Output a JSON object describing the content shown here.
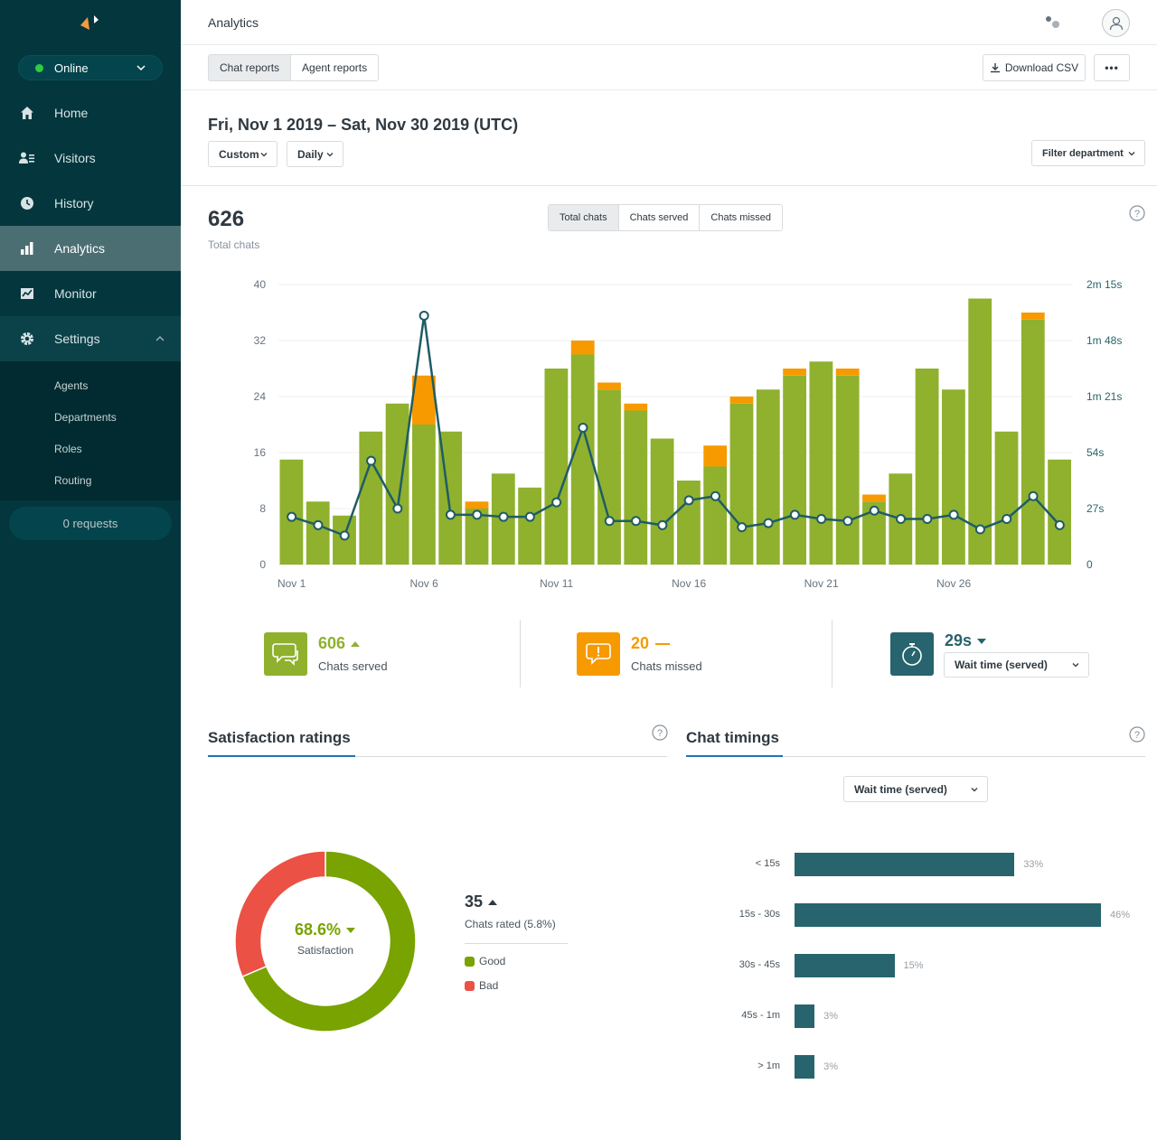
{
  "sidebar": {
    "status": "Online",
    "nav": [
      {
        "label": "Home",
        "icon": "home-icon"
      },
      {
        "label": "Visitors",
        "icon": "visitors-icon"
      },
      {
        "label": "History",
        "icon": "clock-icon"
      },
      {
        "label": "Analytics",
        "icon": "bar-chart-icon"
      },
      {
        "label": "Monitor",
        "icon": "monitor-icon"
      },
      {
        "label": "Settings",
        "icon": "gear-icon"
      }
    ],
    "settings_sub": [
      "Agents",
      "Departments",
      "Roles",
      "Routing"
    ],
    "requests": "0 requests"
  },
  "header": {
    "title": "Analytics"
  },
  "toolbar": {
    "tabs": [
      "Chat reports",
      "Agent reports"
    ],
    "download_label": "Download CSV",
    "more_label": "•••"
  },
  "report": {
    "date_range": "Fri, Nov 1 2019 – Sat, Nov 30 2019 (UTC)",
    "range_select": "Custom",
    "interval_select": "Daily",
    "filter_label": "Filter department"
  },
  "overview": {
    "total": "626",
    "total_label": "Total chats",
    "metric_tabs": [
      "Total chats",
      "Chats served",
      "Chats missed"
    ]
  },
  "colors": {
    "served": "#8fb12e",
    "missed": "#f79a00",
    "wait_line": "#1f5c66",
    "good": "#78a300",
    "bad": "#eb5144",
    "timing_bar": "#27646d"
  },
  "chart_data": [
    {
      "type": "bar",
      "x_ticks": [
        "Nov 1",
        "Nov 6",
        "Nov 11",
        "Nov 16",
        "Nov 21",
        "Nov 26"
      ],
      "y_ticks": [
        "0",
        "8",
        "16",
        "24",
        "32",
        "40"
      ],
      "y2_ticks": [
        "0",
        "27s",
        "54s",
        "1m 21s",
        "1m 48s",
        "2m 15s"
      ],
      "ylim": [
        0,
        40
      ],
      "y2lim": [
        0,
        135
      ],
      "stacked": true,
      "series": [
        {
          "name": "Chats served",
          "values": [
            15,
            9,
            7,
            19,
            23,
            20,
            19,
            8,
            13,
            11,
            28,
            30,
            25,
            22,
            18,
            12,
            14,
            23,
            25,
            27,
            29,
            27,
            9,
            13,
            28,
            25,
            38,
            19,
            35,
            15
          ]
        },
        {
          "name": "Chats missed",
          "values": [
            0,
            0,
            0,
            0,
            0,
            7,
            0,
            1,
            0,
            0,
            0,
            2,
            1,
            1,
            0,
            0,
            3,
            1,
            0,
            1,
            0,
            1,
            1,
            0,
            0,
            0,
            0,
            0,
            1,
            0
          ]
        },
        {
          "name": "Wait time (served)",
          "axis": "right",
          "values": [
            23,
            19,
            14,
            50,
            27,
            120,
            24,
            24,
            23,
            23,
            30,
            66,
            21,
            21,
            19,
            31,
            33,
            18,
            20,
            24,
            22,
            21,
            26,
            22,
            22,
            24,
            17,
            22,
            33,
            19
          ]
        }
      ]
    },
    {
      "type": "pie",
      "categories": [
        "Good",
        "Bad"
      ],
      "values": [
        68.6,
        31.4
      ],
      "center_value": "68.6%",
      "center_label": "Satisfaction"
    },
    {
      "type": "bar",
      "orientation": "horizontal",
      "categories": [
        "< 15s",
        "15s - 30s",
        "30s - 45s",
        "45s - 1m",
        "> 1m"
      ],
      "values": [
        33,
        46,
        15,
        3,
        3
      ],
      "labels": [
        "33%",
        "46%",
        "15%",
        "3%",
        "3%"
      ]
    }
  ],
  "summary": {
    "served_value": "606",
    "served_label": "Chats served",
    "missed_value": "20",
    "missed_label": "Chats missed",
    "wait_value": "29s",
    "wait_select": "Wait time (served)"
  },
  "satisfaction": {
    "title": "Satisfaction ratings",
    "rated_count": "35",
    "rated_label": "Chats rated (5.8%)",
    "legend": [
      "Good",
      "Bad"
    ]
  },
  "timings": {
    "title": "Chat timings",
    "select": "Wait time (served)"
  }
}
